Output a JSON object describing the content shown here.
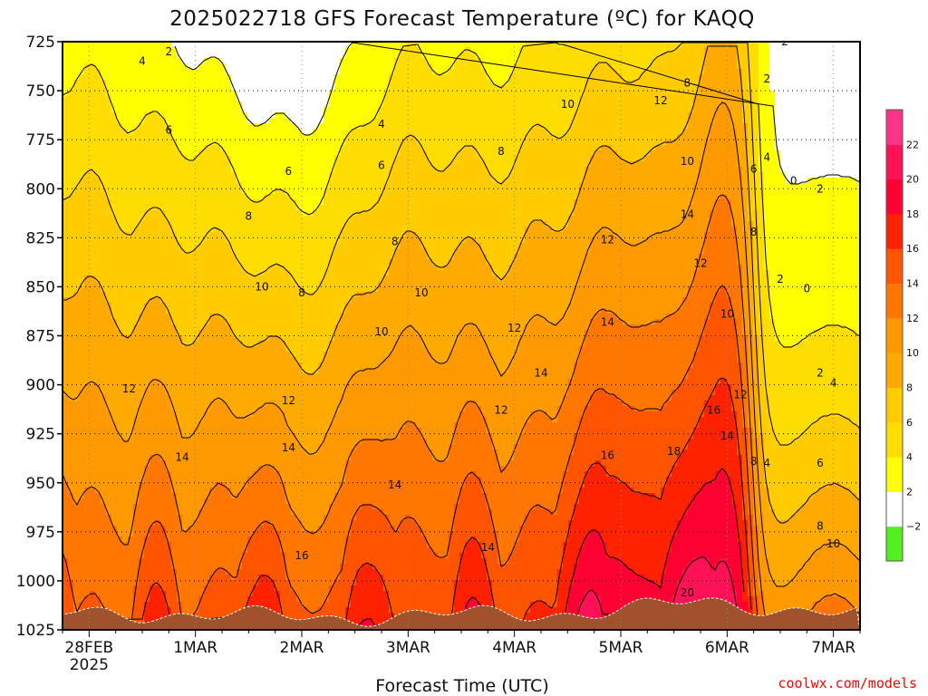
{
  "chart_data": {
    "type": "heatmap",
    "title": "2025022718 GFS Forecast Temperature (ºC) for KAQQ",
    "xlabel": "Forecast Time (UTC)",
    "credit": "coolwx.com/models",
    "x_ticks": [
      {
        "value": "2025-02-28T00",
        "label": "28FEB",
        "sublabel": "2025"
      },
      {
        "value": "2025-03-01T00",
        "label": "1MAR"
      },
      {
        "value": "2025-03-02T00",
        "label": "2MAR"
      },
      {
        "value": "2025-03-03T00",
        "label": "3MAR"
      },
      {
        "value": "2025-03-04T00",
        "label": "4MAR"
      },
      {
        "value": "2025-03-05T00",
        "label": "5MAR"
      },
      {
        "value": "2025-03-06T00",
        "label": "6MAR"
      },
      {
        "value": "2025-03-07T00",
        "label": "7MAR"
      }
    ],
    "xlim": [
      "2025-02-27T18",
      "2025-03-07T06"
    ],
    "y_ticks": [
      725,
      750,
      775,
      800,
      825,
      850,
      875,
      900,
      925,
      950,
      975,
      1000,
      1025
    ],
    "ylim": [
      1025,
      725
    ],
    "grid": true,
    "colorbar": {
      "levels": [
        -4,
        -2,
        2,
        4,
        6,
        8,
        10,
        12,
        14,
        16,
        18,
        20,
        22,
        24
      ],
      "labels": [
        "−2",
        "2",
        "4",
        "6",
        "8",
        "10",
        "12",
        "14",
        "16",
        "18",
        "20",
        "22"
      ],
      "colors": [
        "#55ee22",
        "#ffffff",
        "#ffff00",
        "#ffdd00",
        "#ffcc00",
        "#ffaa00",
        "#ff9900",
        "#ff7700",
        "#ff5500",
        "#ff2200",
        "#ff0033",
        "#ff1155",
        "#ff3388"
      ]
    },
    "bands": [
      {
        "level": -2,
        "color": "#ffffff"
      },
      {
        "level": 2,
        "color": "#ffff00"
      },
      {
        "level": 4,
        "color": "#ffdd00"
      },
      {
        "level": 6,
        "color": "#ffcc00"
      },
      {
        "level": 8,
        "color": "#ffaa00"
      },
      {
        "level": 10,
        "color": "#ff9900"
      },
      {
        "level": 12,
        "color": "#ff7700"
      },
      {
        "level": 14,
        "color": "#ff5500"
      },
      {
        "level": 16,
        "color": "#ff2200"
      },
      {
        "level": 18,
        "color": "#ff0033"
      },
      {
        "level": 20,
        "color": "#ff1155"
      }
    ],
    "contour_labels": [
      {
        "text": "2",
        "x": "2025-02-28T18",
        "p": 730
      },
      {
        "text": "4",
        "x": "2025-02-28T12",
        "p": 735
      },
      {
        "text": "4",
        "x": "2025-03-02T18",
        "p": 767
      },
      {
        "text": "6",
        "x": "2025-02-28T18",
        "p": 770
      },
      {
        "text": "6",
        "x": "2025-03-01T21",
        "p": 791
      },
      {
        "text": "6",
        "x": "2025-03-02T18",
        "p": 788
      },
      {
        "text": "8",
        "x": "2025-03-01T12",
        "p": 814
      },
      {
        "text": "8",
        "x": "2025-03-02T21",
        "p": 827
      },
      {
        "text": "8",
        "x": "2025-03-03T21",
        "p": 781
      },
      {
        "text": "8",
        "x": "2025-03-02T00",
        "p": 853
      },
      {
        "text": "10",
        "x": "2025-03-01T15",
        "p": 850
      },
      {
        "text": "10",
        "x": "2025-03-02T18",
        "p": 873
      },
      {
        "text": "10",
        "x": "2025-03-03T03",
        "p": 853
      },
      {
        "text": "10",
        "x": "2025-03-04T12",
        "p": 757
      },
      {
        "text": "10",
        "x": "2025-03-05T15",
        "p": 786
      },
      {
        "text": "12",
        "x": "2025-02-28T09",
        "p": 902
      },
      {
        "text": "12",
        "x": "2025-03-01T21",
        "p": 908
      },
      {
        "text": "12",
        "x": "2025-03-03T21",
        "p": 913
      },
      {
        "text": "12",
        "x": "2025-03-04T00",
        "p": 871
      },
      {
        "text": "12",
        "x": "2025-03-04T21",
        "p": 826
      },
      {
        "text": "12",
        "x": "2025-03-05T09",
        "p": 755
      },
      {
        "text": "12",
        "x": "2025-03-05T18",
        "p": 838
      },
      {
        "text": "14",
        "x": "2025-02-28T21",
        "p": 937
      },
      {
        "text": "14",
        "x": "2025-03-01T21",
        "p": 932
      },
      {
        "text": "14",
        "x": "2025-03-02T21",
        "p": 951
      },
      {
        "text": "14",
        "x": "2025-03-03T18",
        "p": 983
      },
      {
        "text": "14",
        "x": "2025-03-04T06",
        "p": 894
      },
      {
        "text": "14",
        "x": "2025-03-04T21",
        "p": 868
      },
      {
        "text": "14",
        "x": "2025-03-05T15",
        "p": 813
      },
      {
        "text": "16",
        "x": "2025-03-02T00",
        "p": 987
      },
      {
        "text": "16",
        "x": "2025-03-04T21",
        "p": 936
      },
      {
        "text": "16",
        "x": "2025-03-05T21",
        "p": 913
      },
      {
        "text": "18",
        "x": "2025-03-05T12",
        "p": 934
      },
      {
        "text": "20",
        "x": "2025-03-05T15",
        "p": 1006
      },
      {
        "text": "14",
        "x": "2025-03-06T00",
        "p": 926
      },
      {
        "text": "12",
        "x": "2025-03-06T03",
        "p": 905
      },
      {
        "text": "10",
        "x": "2025-03-06T00",
        "p": 864
      },
      {
        "text": "8",
        "x": "2025-03-06T06",
        "p": 822
      },
      {
        "text": "8",
        "x": "2025-03-06T06",
        "p": 939
      },
      {
        "text": "8",
        "x": "2025-03-05T15",
        "p": 746
      },
      {
        "text": "6",
        "x": "2025-03-06T06",
        "p": 790
      },
      {
        "text": "4",
        "x": "2025-03-06T09",
        "p": 784
      },
      {
        "text": "4",
        "x": "2025-03-06T09",
        "p": 940
      },
      {
        "text": "2",
        "x": "2025-03-06T09",
        "p": 744
      },
      {
        "text": "2",
        "x": "2025-03-06T12",
        "p": 846
      },
      {
        "text": "−2",
        "x": "2025-03-06T12",
        "p": 725
      },
      {
        "text": "0",
        "x": "2025-03-06T15",
        "p": 796
      },
      {
        "text": "0",
        "x": "2025-03-06T18",
        "p": 851
      },
      {
        "text": "2",
        "x": "2025-03-06T21",
        "p": 800
      },
      {
        "text": "2",
        "x": "2025-03-06T21",
        "p": 894
      },
      {
        "text": "4",
        "x": "2025-03-07T00",
        "p": 899
      },
      {
        "text": "6",
        "x": "2025-03-06T21",
        "p": 940
      },
      {
        "text": "8",
        "x": "2025-03-06T21",
        "p": 972
      },
      {
        "text": "10",
        "x": "2025-03-07T00",
        "p": 981
      }
    ]
  }
}
